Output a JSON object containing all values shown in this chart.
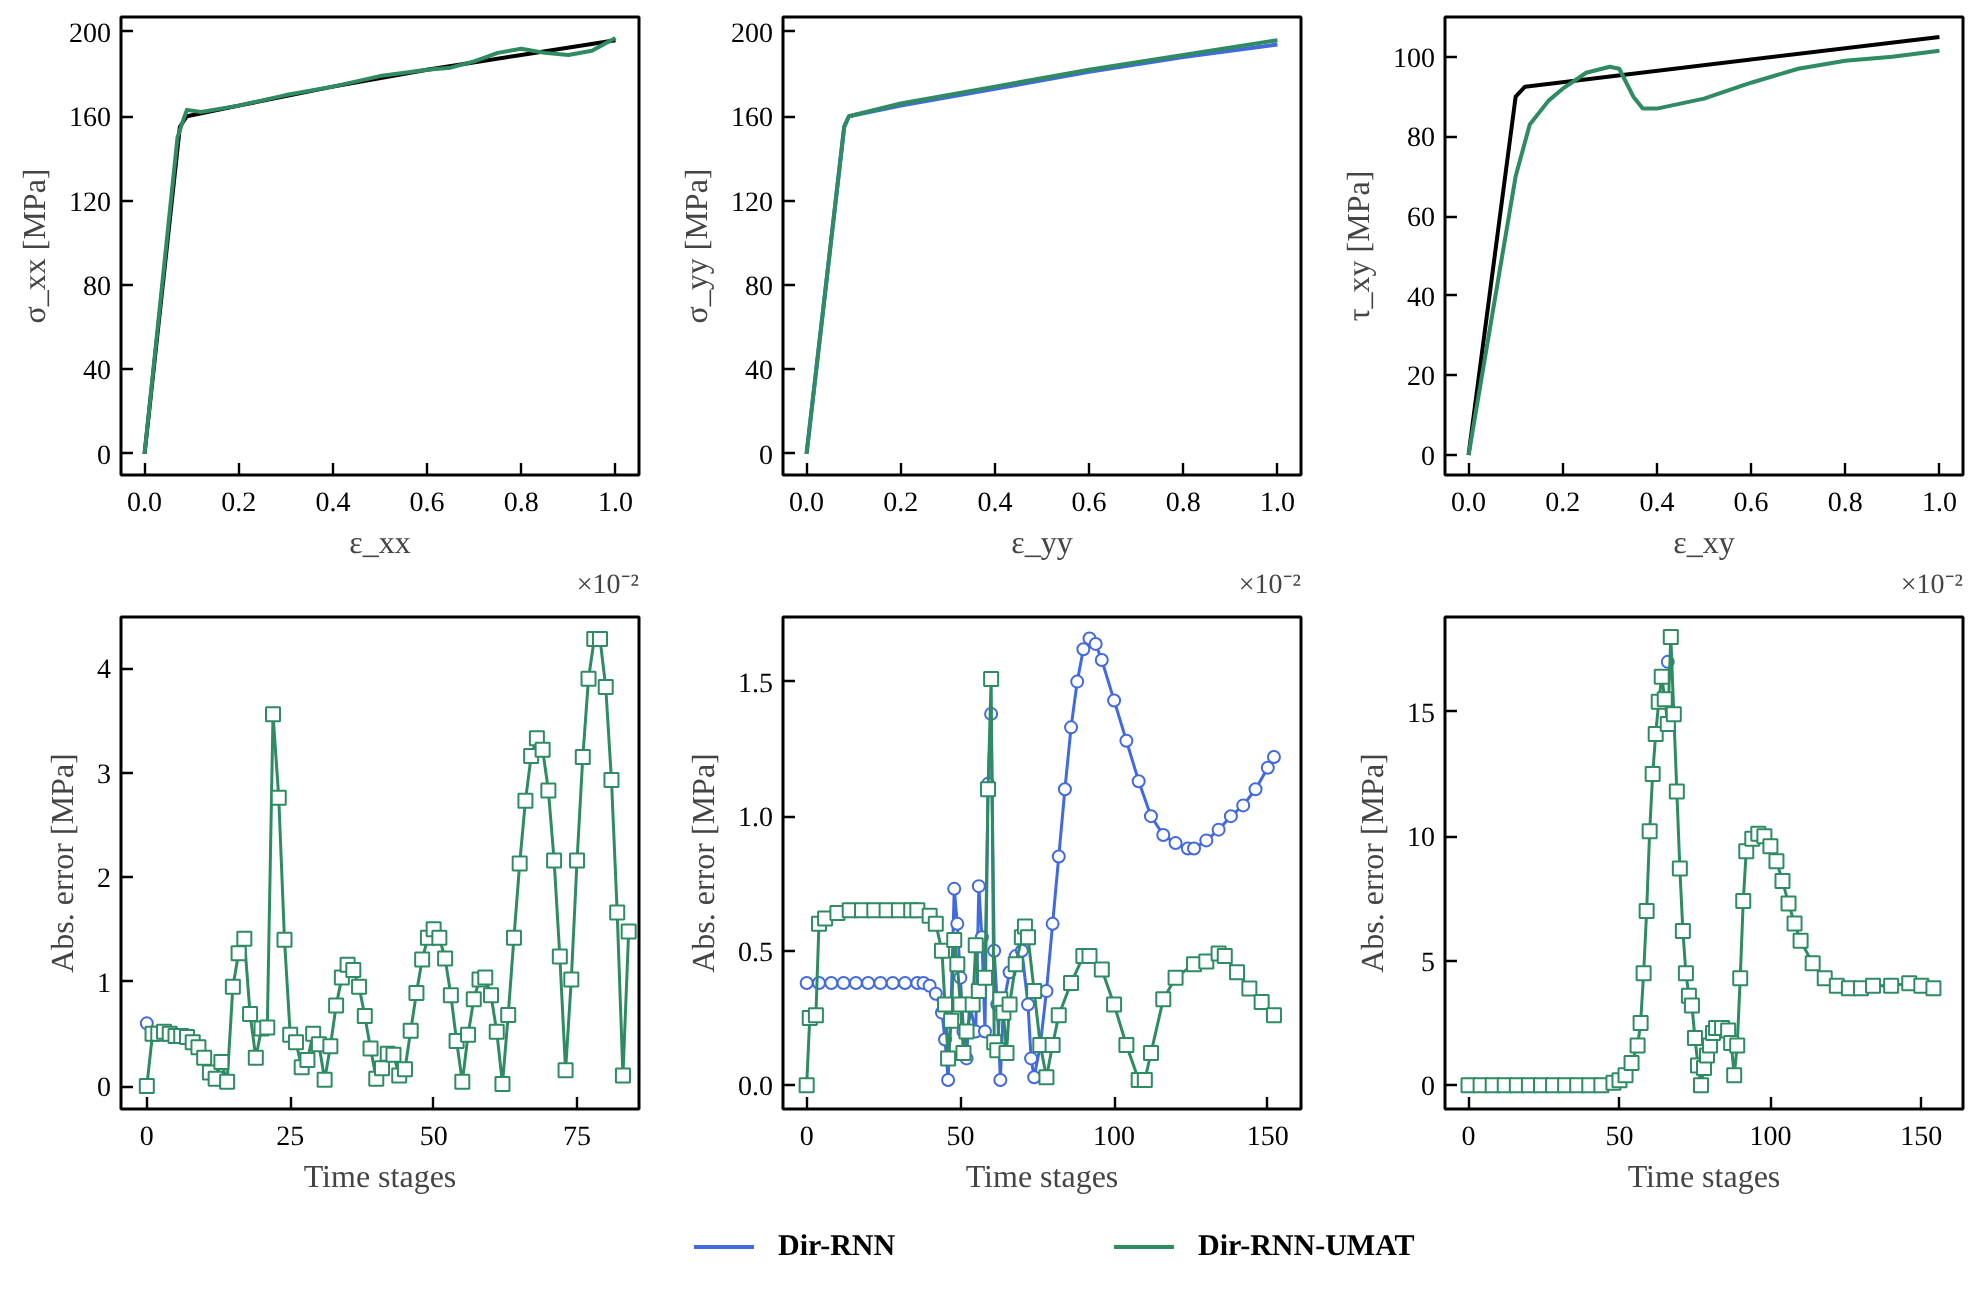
{
  "chart_data": [
    {
      "type": "line",
      "xlabel": "ε_xx",
      "ylabel": "σ_xx [MPa]",
      "annotations": [
        "×10⁻²"
      ],
      "xlim": [
        -0.05,
        1.05
      ],
      "ylim": [
        -10,
        207
      ],
      "xticks": [
        {
          "value": 0,
          "label": "0.0"
        },
        {
          "value": 0.2,
          "label": "0.2"
        },
        {
          "value": 0.4,
          "label": "0.4"
        },
        {
          "value": 0.6,
          "label": "0.6"
        },
        {
          "value": 0.8,
          "label": "0.8"
        },
        {
          "value": 1.0,
          "label": "1.0"
        }
      ],
      "yticks": [
        0,
        40,
        80,
        120,
        160,
        200
      ],
      "grid": false,
      "legend": "bottom",
      "line_style": "solid",
      "series": [
        {
          "color": "#000000",
          "x": [
            0,
            0.075,
            0.09,
            0.2,
            0.4,
            0.6,
            0.8,
            1.0
          ],
          "values": [
            0,
            155,
            160,
            165,
            174,
            182,
            189,
            196
          ]
        },
        {
          "name": "Dir-RNN-UMAT",
          "color": "#2e8b62",
          "x": [
            0,
            0.07,
            0.085,
            0.09,
            0.12,
            0.2,
            0.3,
            0.4,
            0.5,
            0.6,
            0.65,
            0.7,
            0.75,
            0.8,
            0.85,
            0.9,
            0.95,
            1.0
          ],
          "values": [
            0,
            150,
            160,
            163,
            162,
            165,
            170,
            174,
            179,
            182,
            183,
            186,
            190,
            192,
            190,
            189,
            191,
            197
          ]
        }
      ]
    },
    {
      "type": "line",
      "xlabel": "ε_yy",
      "ylabel": "σ_yy [MPa]",
      "annotations": [
        "×10⁻²"
      ],
      "xlim": [
        -0.05,
        1.05
      ],
      "ylim": [
        -10,
        207
      ],
      "xticks": [
        {
          "value": 0,
          "label": "0.0"
        },
        {
          "value": 0.2,
          "label": "0.2"
        },
        {
          "value": 0.4,
          "label": "0.4"
        },
        {
          "value": 0.6,
          "label": "0.6"
        },
        {
          "value": 0.8,
          "label": "0.8"
        },
        {
          "value": 1.0,
          "label": "1.0"
        }
      ],
      "yticks": [
        0,
        40,
        80,
        120,
        160,
        200
      ],
      "grid": false,
      "legend": "bottom",
      "line_style": "solid",
      "series": [
        {
          "name": "Dir-RNN",
          "color": "#4169e1",
          "x": [
            0,
            0.08,
            0.09,
            0.2,
            0.4,
            0.6,
            0.8,
            1.0
          ],
          "values": [
            0,
            155,
            160,
            165,
            173,
            181,
            188,
            194
          ]
        },
        {
          "name": "Dir-RNN-UMAT",
          "color": "#2e8b62",
          "x": [
            0,
            0.08,
            0.09,
            0.2,
            0.4,
            0.6,
            0.8,
            1.0
          ],
          "values": [
            0,
            155,
            160,
            166,
            174,
            182,
            189,
            196
          ]
        }
      ]
    },
    {
      "type": "line",
      "xlabel": "ε_xy",
      "ylabel": "τ_xy [MPa]",
      "annotations": [
        "×10⁻²"
      ],
      "xlim": [
        -0.05,
        1.05
      ],
      "ylim": [
        -5,
        110
      ],
      "xticks": [
        {
          "value": 0,
          "label": "0.0"
        },
        {
          "value": 0.2,
          "label": "0.2"
        },
        {
          "value": 0.4,
          "label": "0.4"
        },
        {
          "value": 0.6,
          "label": "0.6"
        },
        {
          "value": 0.8,
          "label": "0.8"
        },
        {
          "value": 1.0,
          "label": "1.0"
        }
      ],
      "yticks": [
        0,
        20,
        40,
        60,
        80,
        100
      ],
      "grid": false,
      "legend": "bottom",
      "line_style": "solid",
      "series": [
        {
          "color": "#000000",
          "x": [
            0,
            0.1,
            0.12,
            1.0
          ],
          "values": [
            0,
            90,
            92.5,
            105
          ]
        },
        {
          "name": "Dir-RNN-UMAT",
          "color": "#2e8b62",
          "x": [
            0,
            0.05,
            0.1,
            0.13,
            0.17,
            0.2,
            0.25,
            0.3,
            0.32,
            0.35,
            0.37,
            0.4,
            0.5,
            0.6,
            0.7,
            0.8,
            0.9,
            1.0
          ],
          "values": [
            0,
            35,
            70,
            83,
            89,
            92,
            96,
            97.5,
            97,
            90,
            87,
            87,
            89.5,
            93.5,
            97,
            99,
            100,
            101.5
          ]
        }
      ]
    },
    {
      "type": "line",
      "xlabel": "Time stages",
      "ylabel": "Abs. error [MPa]",
      "xlim": [
        -4.5,
        85.8
      ],
      "ylim": [
        -0.22,
        4.49
      ],
      "xticks": [
        0,
        25,
        50,
        75
      ],
      "yticks": [
        0,
        1,
        2,
        3,
        4
      ],
      "grid": false,
      "legend": "bottom",
      "line_style": "solid",
      "series": [
        {
          "name": "Dir-RNN",
          "color": "#4169e1",
          "marker": "circle",
          "x": [
            0
          ],
          "values": [
            0.6
          ]
        },
        {
          "name": "Dir-RNN-UMAT",
          "color": "#2e8b62",
          "marker": "square",
          "x": [
            0,
            1,
            2,
            3,
            4,
            5,
            6,
            7,
            8,
            9,
            10,
            11,
            12,
            13,
            14,
            15,
            16,
            17,
            18,
            19,
            20,
            21,
            22,
            23,
            24,
            25,
            26,
            27,
            28,
            29,
            30,
            31,
            32,
            33,
            34,
            35,
            36,
            37,
            38,
            39,
            40,
            41,
            42,
            43,
            44,
            45,
            46,
            47,
            48,
            49,
            50,
            51,
            52,
            53,
            54,
            55,
            56,
            57,
            58,
            59,
            60,
            61,
            62,
            63,
            64,
            65,
            66,
            67,
            68,
            69,
            70,
            71,
            72,
            73,
            74,
            75,
            76,
            77,
            78,
            79,
            80,
            81,
            82,
            83,
            84
          ],
          "values": [
            0,
            0.5,
            0.5,
            0.52,
            0.5,
            0.48,
            0.48,
            0.47,
            0.42,
            0.37,
            0.27,
            0.13,
            0.07,
            0.23,
            0.04,
            0.95,
            1.27,
            1.41,
            0.69,
            0.27,
            0.55,
            0.56,
            3.56,
            2.76,
            1.4,
            0.49,
            0.42,
            0.18,
            0.25,
            0.5,
            0.4,
            0.06,
            0.38,
            0.77,
            1.04,
            1.16,
            1.11,
            0.95,
            0.67,
            0.36,
            0.07,
            0.17,
            0.31,
            0.3,
            0.1,
            0.16,
            0.53,
            0.89,
            1.21,
            1.42,
            1.5,
            1.42,
            1.22,
            0.87,
            0.43,
            0.04,
            0.49,
            0.83,
            1.02,
            1.04,
            0.87,
            0.52,
            0.02,
            0.68,
            1.42,
            2.13,
            2.73,
            3.16,
            3.33,
            3.22,
            2.83,
            2.16,
            1.24,
            0.15,
            1.02,
            2.16,
            3.15,
            3.9,
            4.28,
            4.28,
            3.82,
            2.93,
            1.66,
            0.1,
            1.48
          ]
        }
      ]
    },
    {
      "type": "line",
      "xlabel": "Time stages",
      "ylabel": "Abs. error [MPa]",
      "xlim": [
        -7.7,
        160.8
      ],
      "ylim": [
        -0.088,
        1.74
      ],
      "xticks": [
        0,
        50,
        100,
        150
      ],
      "yticks": [
        {
          "value": 0,
          "label": "0.0"
        },
        {
          "value": 0.5,
          "label": "0.5"
        },
        {
          "value": 1.0,
          "label": "1.0"
        },
        {
          "value": 1.5,
          "label": "1.5"
        }
      ],
      "grid": false,
      "legend": "bottom",
      "line_style": "solid",
      "series": [
        {
          "name": "Dir-RNN",
          "color": "#4169e1",
          "marker": "circle",
          "x": [
            0,
            4,
            8,
            12,
            16,
            20,
            24,
            28,
            32,
            36,
            38,
            40,
            42,
            44,
            45,
            46,
            47,
            48,
            49,
            50,
            51,
            52,
            53,
            55,
            56,
            57,
            58,
            59,
            60,
            61,
            62,
            63,
            64,
            66,
            68,
            70,
            72,
            73,
            74,
            76,
            78,
            80,
            82,
            84,
            86,
            88,
            90,
            92,
            94,
            96,
            100,
            104,
            108,
            112,
            116,
            120,
            124,
            126,
            130,
            134,
            138,
            142,
            146,
            150,
            152
          ],
          "values": [
            0.38,
            0.38,
            0.38,
            0.38,
            0.38,
            0.38,
            0.38,
            0.38,
            0.38,
            0.38,
            0.38,
            0.37,
            0.34,
            0.27,
            0.17,
            0.02,
            0.3,
            0.73,
            0.6,
            0.4,
            0.2,
            0.1,
            0.3,
            0.2,
            0.74,
            0.55,
            0.2,
            1.12,
            1.38,
            0.5,
            0.3,
            0.02,
            0.3,
            0.42,
            0.48,
            0.5,
            0.3,
            0.1,
            0.03,
            0.15,
            0.35,
            0.6,
            0.85,
            1.1,
            1.33,
            1.5,
            1.62,
            1.66,
            1.64,
            1.58,
            1.43,
            1.28,
            1.13,
            1.0,
            0.93,
            0.9,
            0.88,
            0.88,
            0.91,
            0.95,
            1.0,
            1.04,
            1.1,
            1.18,
            1.22
          ]
        },
        {
          "name": "Dir-RNN-UMAT",
          "color": "#2e8b62",
          "marker": "square",
          "x": [
            0,
            1,
            3,
            4,
            6,
            10,
            14,
            18,
            22,
            26,
            30,
            34,
            36,
            40,
            42,
            44,
            45,
            46,
            47,
            48,
            49,
            50,
            51,
            52,
            54,
            55,
            56,
            58,
            59,
            60,
            61,
            62,
            63,
            64,
            65,
            66,
            68,
            70,
            71,
            72,
            74,
            76,
            78,
            80,
            82,
            86,
            90,
            92,
            96,
            100,
            104,
            108,
            110,
            112,
            116,
            120,
            126,
            130,
            134,
            136,
            140,
            144,
            148,
            152
          ],
          "values": [
            0,
            0.25,
            0.26,
            0.6,
            0.62,
            0.64,
            0.65,
            0.65,
            0.65,
            0.65,
            0.65,
            0.65,
            0.65,
            0.63,
            0.6,
            0.5,
            0.3,
            0.1,
            0.24,
            0.54,
            0.45,
            0.3,
            0.12,
            0.2,
            0.3,
            0.52,
            0.35,
            0.4,
            1.1,
            1.51,
            0.16,
            0.13,
            0.32,
            0.27,
            0.12,
            0.3,
            0.45,
            0.55,
            0.59,
            0.55,
            0.35,
            0.15,
            0.03,
            0.15,
            0.26,
            0.38,
            0.48,
            0.48,
            0.43,
            0.3,
            0.15,
            0.02,
            0.02,
            0.12,
            0.32,
            0.4,
            0.45,
            0.46,
            0.49,
            0.48,
            0.42,
            0.36,
            0.31,
            0.26
          ]
        }
      ]
    },
    {
      "type": "line",
      "xlabel": "Time stages",
      "ylabel": "Abs. error [MPa]",
      "xlim": [
        -7.8,
        163.8
      ],
      "ylim": [
        -0.95,
        18.8
      ],
      "xticks": [
        0,
        50,
        100,
        150
      ],
      "yticks": [
        0,
        5,
        10,
        15
      ],
      "grid": false,
      "legend": "bottom",
      "line_style": "solid",
      "series": [
        {
          "name": "Dir-RNN",
          "color": "#4169e1",
          "marker": "circle",
          "x": [
            66
          ],
          "values": [
            17.0
          ]
        },
        {
          "name": "Dir-RNN-UMAT",
          "color": "#2e8b62",
          "marker": "square",
          "x": [
            0,
            4,
            8,
            12,
            16,
            20,
            24,
            28,
            32,
            36,
            40,
            44,
            48,
            50,
            52,
            54,
            56,
            57,
            58,
            59,
            60,
            61,
            62,
            63,
            64,
            65,
            66,
            67,
            68,
            69,
            70,
            71,
            72,
            73,
            74,
            75,
            76,
            77,
            78,
            79,
            80,
            81,
            82,
            84,
            86,
            87,
            88,
            89,
            90,
            91,
            92,
            94,
            96,
            98,
            100,
            102,
            104,
            106,
            108,
            110,
            114,
            118,
            122,
            126,
            130,
            134,
            140,
            146,
            150,
            154
          ],
          "values": [
            0,
            0,
            0,
            0,
            0,
            0,
            0,
            0,
            0,
            0,
            0,
            0,
            0.1,
            0.2,
            0.4,
            0.9,
            1.6,
            2.5,
            4.5,
            7.0,
            10.2,
            12.5,
            14.1,
            15.4,
            16.4,
            15.5,
            14.5,
            18.0,
            14.9,
            11.8,
            8.7,
            6.2,
            4.5,
            3.6,
            3.2,
            1.9,
            0.8,
            0.0,
            0.7,
            1.2,
            1.6,
            2.1,
            2.3,
            2.3,
            2.2,
            1.7,
            0.4,
            1.6,
            4.3,
            7.4,
            9.4,
            9.9,
            10.1,
            10.0,
            9.6,
            9.0,
            8.2,
            7.3,
            6.5,
            5.8,
            4.9,
            4.3,
            4.0,
            3.9,
            3.9,
            4.0,
            4.0,
            4.1,
            4.0,
            3.9
          ]
        }
      ]
    }
  ]
}
